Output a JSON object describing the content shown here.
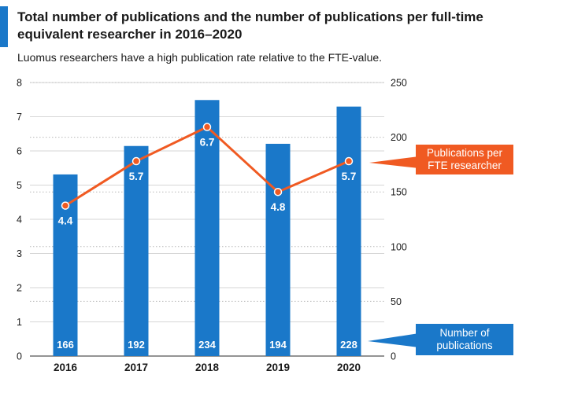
{
  "header": {
    "title": "Total number of publications and the number of publications per full-time equivalent researcher in 2016–2020",
    "subtitle": "Luomus researchers have a high publication rate relative to the FTE-value."
  },
  "legend": {
    "per_fte_label": "Publications per\nFTE researcher",
    "count_label": "Number of\npublications"
  },
  "colors": {
    "bar": "#1a78c9",
    "line": "#f05a22",
    "accent": "#1a78c9"
  },
  "chart_data": {
    "type": "bar",
    "title": "Total number of publications and the number of publications per full-time equivalent researcher in 2016–2020",
    "subtitle": "Luomus researchers have a high publication rate relative to the FTE-value.",
    "categories": [
      "2016",
      "2017",
      "2018",
      "2019",
      "2020"
    ],
    "left_axis": {
      "min": 0,
      "max": 8,
      "ticks": [
        "0",
        "1",
        "2",
        "3",
        "4",
        "5",
        "6",
        "7",
        "8"
      ]
    },
    "right_axis": {
      "min": 0,
      "max": 250,
      "ticks": [
        "0",
        "50",
        "100",
        "150",
        "200",
        "250"
      ]
    },
    "series": [
      {
        "name": "Number of publications",
        "type": "bar",
        "axis": "right",
        "values": [
          166,
          192,
          234,
          194,
          228
        ],
        "labels": [
          "166",
          "192",
          "234",
          "194",
          "228"
        ]
      },
      {
        "name": "Publications per FTE researcher",
        "type": "line",
        "axis": "left",
        "values": [
          4.4,
          5.7,
          6.7,
          4.8,
          5.7
        ],
        "labels": [
          "4.4",
          "5.7",
          "6.7",
          "4.8",
          "5.7"
        ]
      }
    ],
    "grid": true,
    "legend_placement": "right"
  }
}
